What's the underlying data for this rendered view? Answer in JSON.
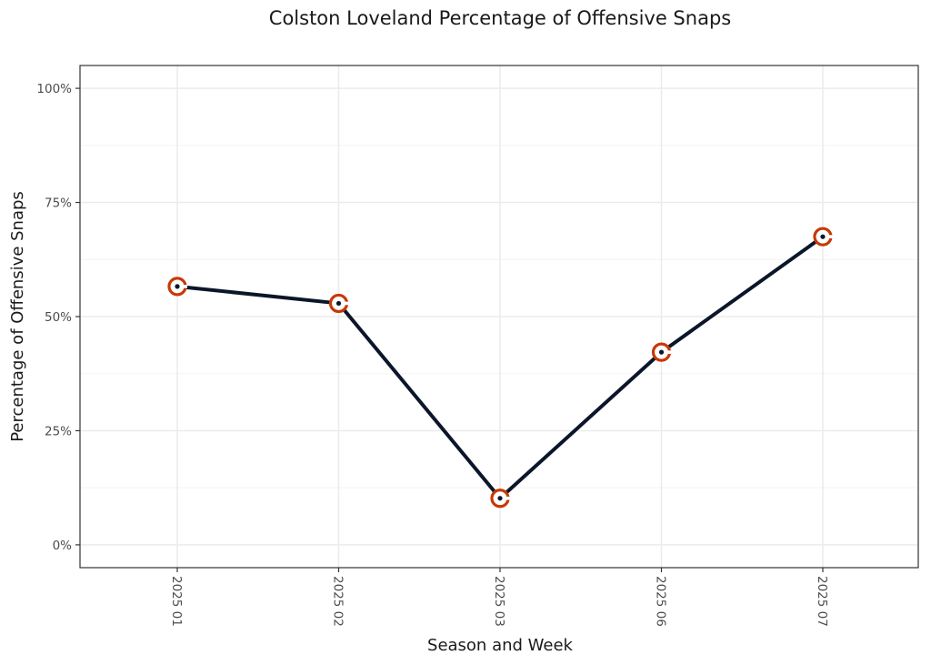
{
  "chart_data": {
    "type": "line",
    "title": "Colston Loveland Percentage of Offensive Snaps",
    "xlabel": "Season and Week",
    "ylabel": "Percentage of Offensive Snaps",
    "categories": [
      "2025 01",
      "2025 02",
      "2025 03",
      "2025 06",
      "2025 07"
    ],
    "series": [
      {
        "name": "Colston Loveland",
        "values": [
          56.6,
          52.9,
          10.2,
          42.2,
          67.5
        ]
      }
    ],
    "ylim": [
      -5,
      105
    ],
    "yticks": [
      0,
      25,
      50,
      75,
      100
    ],
    "ytick_labels": [
      "0%",
      "25%",
      "50%",
      "75%",
      "100%"
    ],
    "grid": true,
    "legend": "none",
    "colors": {
      "line": "#0b162a",
      "marker": "#c83803",
      "grid_major": "#ebebeb",
      "grid_minor": "#f3f3f3",
      "panel_border": "#333333"
    }
  }
}
